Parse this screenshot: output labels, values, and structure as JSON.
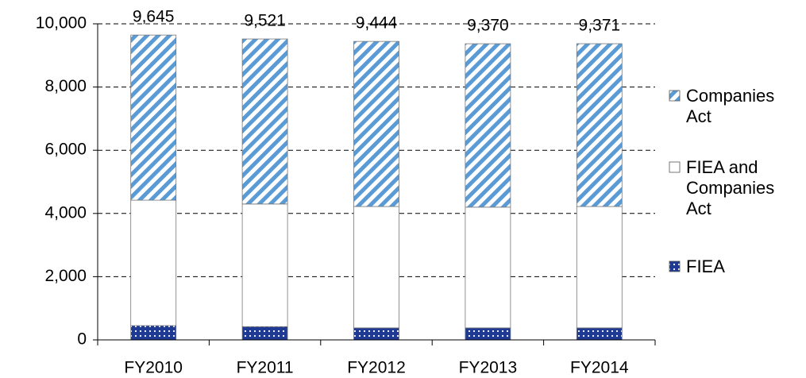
{
  "chart_data": {
    "type": "stacked_bar",
    "categories": [
      "FY2010",
      "FY2011",
      "FY2012",
      "FY2013",
      "FY2014"
    ],
    "series": [
      {
        "name": "FIEA",
        "color": "#1f3a93",
        "pattern": "dots",
        "values": [
          450,
          420,
          380,
          380,
          380
        ]
      },
      {
        "name": "FIEA and Companies Act",
        "color": "#ffffff",
        "pattern": "none",
        "values": [
          3970,
          3880,
          3840,
          3820,
          3840
        ]
      },
      {
        "name": "Companies Act",
        "color": "#5b9bd5",
        "pattern": "hatch",
        "values": [
          5225,
          5221,
          5224,
          5170,
          5151
        ]
      }
    ],
    "totals": [
      9645,
      9521,
      9444,
      9370,
      9371
    ],
    "total_labels": [
      "9,645",
      "9,521",
      "9,444",
      "9,370",
      "9,371"
    ],
    "ylim": [
      0,
      10000
    ],
    "yticks": [
      0,
      {
        "value": 2000,
        "label": "2,000"
      },
      {
        "value": 4000,
        "label": "4,000"
      },
      {
        "value": 6000,
        "label": "6,000"
      },
      {
        "value": 8000,
        "label": "8,000"
      },
      {
        "value": 10000,
        "label": "10,000"
      }
    ],
    "grid": true,
    "legend": "right"
  }
}
